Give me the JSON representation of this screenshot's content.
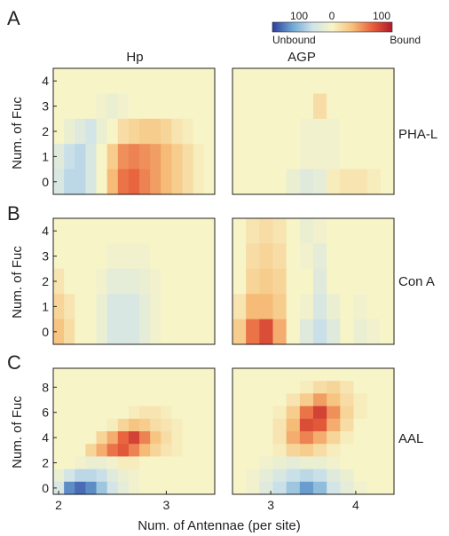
{
  "panel_letters": [
    "A",
    "B",
    "C"
  ],
  "column_titles": [
    "Hp",
    "AGP"
  ],
  "row_labels": [
    "PHA-L",
    "Con A",
    "AAL"
  ],
  "y_axis_label": "Num. of Fuc",
  "x_axis_label": "Num. of Antennae (per site)",
  "colorbar": {
    "ticks": [
      "100",
      "0",
      "100"
    ],
    "left_label": "Unbound",
    "right_label": "Bound",
    "colors": [
      "#2c3b9c",
      "#6fa8d4",
      "#cfe3ea",
      "#f7f4c8",
      "#f7c07a",
      "#e7603c",
      "#b2182b"
    ]
  },
  "chart_data": [
    {
      "type": "heatmap",
      "title": "Hp",
      "row_label": "PHA-L",
      "panel": "A",
      "xlabel": "",
      "ylabel": "Num. of Fuc",
      "x_range": [
        1.95,
        3.45
      ],
      "y_range": [
        -0.5,
        4.5
      ],
      "x_ticks": [],
      "y_ticks": [
        "0",
        "1",
        "2",
        "3",
        "4"
      ],
      "value_range": [
        -100,
        100
      ],
      "values": [
        [
          0,
          0,
          0,
          0,
          0,
          0,
          0,
          0,
          0,
          0,
          0,
          0,
          0,
          0,
          0
        ],
        [
          0,
          0,
          0,
          0,
          -5,
          -10,
          -5,
          0,
          0,
          0,
          0,
          0,
          0,
          0,
          0
        ],
        [
          0,
          -10,
          -20,
          -30,
          -10,
          0,
          15,
          20,
          25,
          25,
          20,
          10,
          5,
          0,
          0
        ],
        [
          -20,
          -35,
          -40,
          -25,
          0,
          25,
          50,
          55,
          50,
          45,
          35,
          25,
          15,
          5,
          0
        ],
        [
          -25,
          -40,
          -40,
          -25,
          0,
          35,
          60,
          65,
          55,
          45,
          35,
          25,
          15,
          5,
          0
        ]
      ]
    },
    {
      "type": "heatmap",
      "title": "AGP",
      "row_label": "PHA-L",
      "panel": "A",
      "xlabel": "",
      "ylabel": "",
      "x_range": [
        2.55,
        4.45
      ],
      "y_range": [
        -0.5,
        4.5
      ],
      "x_ticks": [],
      "y_ticks": [],
      "value_range": [
        -100,
        100
      ],
      "values": [
        [
          0,
          0,
          0,
          0,
          0,
          0,
          0,
          0,
          0,
          0,
          0,
          0
        ],
        [
          0,
          0,
          0,
          0,
          0,
          0,
          15,
          0,
          0,
          0,
          0,
          0
        ],
        [
          0,
          0,
          0,
          0,
          0,
          -5,
          -5,
          -5,
          0,
          0,
          0,
          0
        ],
        [
          0,
          0,
          0,
          0,
          0,
          -5,
          -5,
          -5,
          0,
          0,
          0,
          0
        ],
        [
          0,
          0,
          0,
          0,
          -10,
          -20,
          -15,
          5,
          10,
          10,
          5,
          0
        ]
      ]
    },
    {
      "type": "heatmap",
      "title": "",
      "row_label": "Con A",
      "panel": "B",
      "xlabel": "",
      "ylabel": "Num. of Fuc",
      "x_range": [
        1.95,
        3.45
      ],
      "y_range": [
        -0.5,
        4.5
      ],
      "x_ticks": [],
      "y_ticks": [
        "0",
        "1",
        "2",
        "3",
        "4"
      ],
      "value_range": [
        -100,
        100
      ],
      "values": [
        [
          0,
          0,
          0,
          0,
          0,
          0,
          0,
          0,
          0,
          0,
          0,
          0,
          0,
          0,
          0
        ],
        [
          0,
          0,
          0,
          0,
          0,
          -5,
          -5,
          -5,
          -5,
          0,
          0,
          0,
          0,
          0,
          0
        ],
        [
          10,
          0,
          0,
          0,
          -5,
          -15,
          -15,
          -15,
          -10,
          -5,
          0,
          0,
          0,
          0,
          0
        ],
        [
          20,
          10,
          0,
          0,
          -10,
          -25,
          -25,
          -25,
          -15,
          -5,
          0,
          0,
          0,
          0,
          0
        ],
        [
          30,
          15,
          0,
          0,
          -10,
          -25,
          -25,
          -25,
          -15,
          -5,
          0,
          0,
          0,
          0,
          0
        ]
      ]
    },
    {
      "type": "heatmap",
      "title": "",
      "row_label": "Con A",
      "panel": "B",
      "xlabel": "",
      "ylabel": "",
      "x_range": [
        2.55,
        4.45
      ],
      "y_range": [
        -0.5,
        4.5
      ],
      "x_ticks": [],
      "y_ticks": [],
      "value_range": [
        -100,
        100
      ],
      "values": [
        [
          0,
          10,
          15,
          10,
          0,
          -10,
          -5,
          0,
          0,
          0,
          0,
          0
        ],
        [
          0,
          15,
          20,
          15,
          0,
          -5,
          -15,
          0,
          0,
          0,
          0,
          0
        ],
        [
          0,
          20,
          25,
          20,
          0,
          0,
          -20,
          0,
          0,
          0,
          0,
          0
        ],
        [
          10,
          35,
          35,
          25,
          0,
          -5,
          -25,
          -10,
          0,
          -5,
          0,
          0
        ],
        [
          25,
          60,
          75,
          40,
          0,
          -20,
          -35,
          -20,
          0,
          -10,
          -5,
          0
        ]
      ]
    },
    {
      "type": "heatmap",
      "title": "",
      "row_label": "AAL",
      "panel": "C",
      "xlabel": "Num. of Antennae (per site)",
      "ylabel": "Num. of Fuc",
      "x_range": [
        1.95,
        3.45
      ],
      "y_range": [
        -0.5,
        9.5
      ],
      "x_ticks": [
        "2",
        "3"
      ],
      "y_ticks": [
        "0",
        "2",
        "4",
        "6",
        "8"
      ],
      "value_range": [
        -100,
        100
      ],
      "values": [
        [
          0,
          0,
          0,
          0,
          0,
          0,
          0,
          0,
          0,
          0,
          0,
          0,
          0,
          0,
          0
        ],
        [
          0,
          0,
          0,
          0,
          0,
          0,
          0,
          0,
          0,
          0,
          0,
          0,
          0,
          0,
          0
        ],
        [
          0,
          0,
          0,
          0,
          0,
          0,
          0,
          0,
          0,
          0,
          0,
          0,
          0,
          0,
          0
        ],
        [
          0,
          0,
          0,
          0,
          0,
          0,
          0,
          5,
          10,
          10,
          5,
          0,
          0,
          0,
          0
        ],
        [
          0,
          0,
          0,
          0,
          0,
          5,
          20,
          30,
          25,
          15,
          10,
          5,
          0,
          0,
          0
        ],
        [
          0,
          0,
          0,
          0,
          20,
          40,
          65,
          80,
          55,
          30,
          15,
          5,
          0,
          0,
          0
        ],
        [
          0,
          0,
          0,
          20,
          40,
          60,
          70,
          55,
          35,
          20,
          10,
          5,
          0,
          0,
          0
        ],
        [
          0,
          0,
          -5,
          -10,
          -10,
          -5,
          5,
          5,
          0,
          0,
          0,
          0,
          0,
          0,
          0
        ],
        [
          -10,
          -30,
          -40,
          -40,
          -35,
          -20,
          -10,
          -5,
          0,
          0,
          0,
          0,
          0,
          0,
          0
        ],
        [
          -25,
          -75,
          -85,
          -75,
          -50,
          -30,
          -15,
          -5,
          0,
          0,
          0,
          0,
          0,
          0,
          0
        ]
      ]
    },
    {
      "type": "heatmap",
      "title": "",
      "row_label": "AAL",
      "panel": "C",
      "xlabel": "Num. of Antennae (per site)",
      "ylabel": "",
      "x_range": [
        2.55,
        4.45
      ],
      "y_range": [
        -0.5,
        9.5
      ],
      "x_ticks": [
        "3",
        "4"
      ],
      "y_ticks": [],
      "value_range": [
        -100,
        100
      ],
      "values": [
        [
          0,
          0,
          0,
          0,
          0,
          0,
          0,
          0,
          0,
          0,
          0,
          0
        ],
        [
          0,
          0,
          0,
          0,
          0,
          5,
          15,
          20,
          10,
          0,
          0,
          0
        ],
        [
          0,
          0,
          0,
          0,
          10,
          25,
          45,
          30,
          15,
          5,
          0,
          0
        ],
        [
          0,
          0,
          0,
          5,
          25,
          60,
          80,
          50,
          20,
          5,
          0,
          0
        ],
        [
          0,
          0,
          0,
          10,
          35,
          75,
          70,
          40,
          15,
          0,
          0,
          0
        ],
        [
          0,
          0,
          0,
          10,
          40,
          55,
          40,
          20,
          5,
          0,
          0,
          0
        ],
        [
          0,
          0,
          0,
          5,
          20,
          25,
          15,
          5,
          0,
          0,
          0,
          0
        ],
        [
          0,
          0,
          -5,
          -10,
          -15,
          -10,
          -10,
          -5,
          0,
          0,
          0,
          0
        ],
        [
          0,
          -5,
          -15,
          -25,
          -35,
          -40,
          -35,
          -20,
          -10,
          0,
          0,
          0
        ],
        [
          0,
          -5,
          -20,
          -35,
          -50,
          -70,
          -55,
          -30,
          -15,
          -5,
          0,
          0
        ]
      ]
    }
  ]
}
